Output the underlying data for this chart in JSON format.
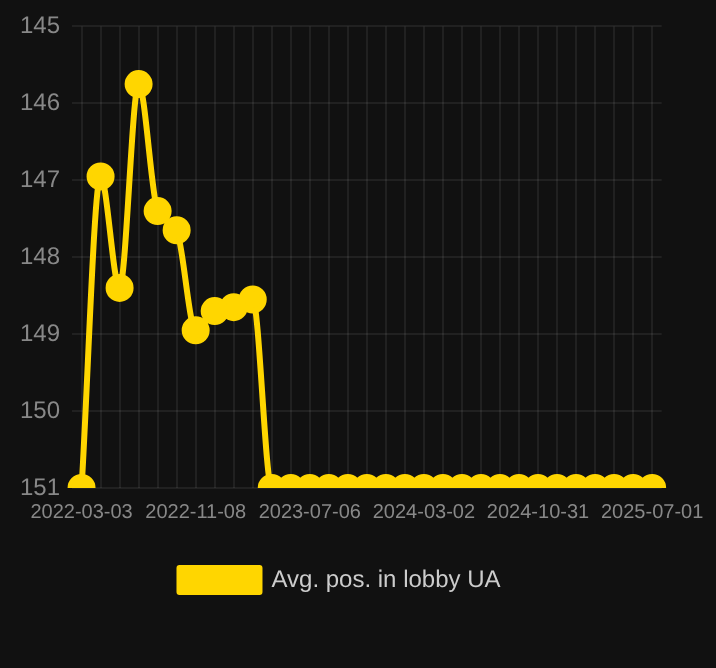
{
  "chart_data": {
    "type": "line",
    "categories": [
      "2022-03-03",
      null,
      null,
      null,
      null,
      null,
      "2022-11-08",
      null,
      null,
      null,
      null,
      null,
      "2023-07-06",
      null,
      null,
      null,
      null,
      null,
      "2024-03-02",
      null,
      null,
      null,
      null,
      null,
      "2024-10-31",
      null,
      null,
      null,
      null,
      null,
      "2025-07-01"
    ],
    "series": [
      {
        "name": "Avg. pos. in lobby UA",
        "color": "#ffd600",
        "values": [
          151,
          146.95,
          148.4,
          145.75,
          147.4,
          147.65,
          148.95,
          148.7,
          148.65,
          148.55,
          151,
          151,
          151,
          151,
          151,
          151,
          151,
          151,
          151,
          151,
          151,
          151,
          151,
          151,
          151,
          151,
          151,
          151,
          151,
          151,
          151
        ]
      }
    ],
    "ylim": [
      151,
      145
    ],
    "yticks": [
      145,
      146,
      147,
      148,
      149,
      150,
      151
    ],
    "grid": true,
    "legend": "bottom",
    "marker": "circle",
    "line_style": "solid"
  }
}
